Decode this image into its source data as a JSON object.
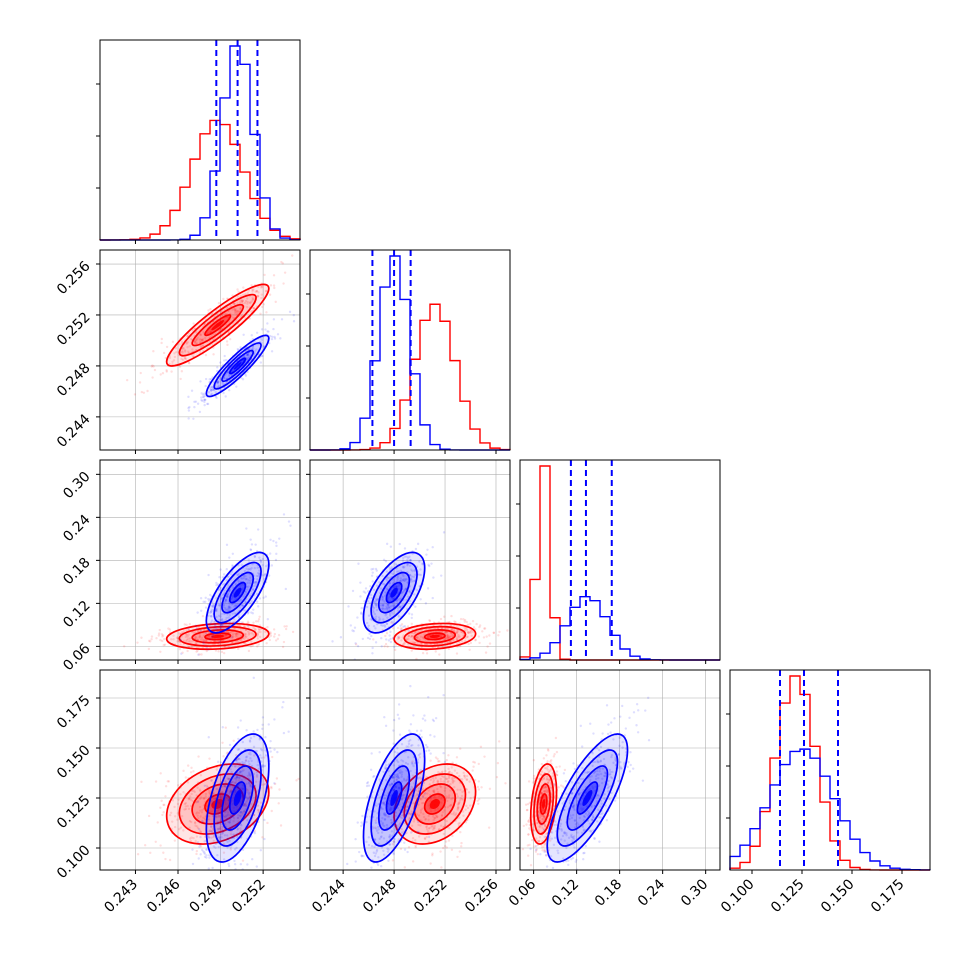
{
  "chart_data": {
    "type": "corner",
    "n_params": 4,
    "colors": {
      "series_red": "#ff0000",
      "series_blue": "#0000ff",
      "grid": "#b0b0b0",
      "frame": "#000000"
    },
    "series": [
      {
        "color_key": "series_red",
        "means": [
          0.2488,
          0.2512,
          0.074,
          0.122
        ],
        "sds": [
          0.0018,
          0.0016,
          0.009,
          0.01
        ],
        "corr": {
          "1,0": 0.9,
          "2,0": 0.2,
          "2,1": 0.2,
          "3,0": 0.3,
          "3,1": 0.3,
          "3,2": 0.3
        }
      },
      {
        "color_key": "series_blue",
        "means": [
          0.2502,
          0.248,
          0.135,
          0.125
        ],
        "sds": [
          0.0011,
          0.0012,
          0.028,
          0.016
        ],
        "corr": {
          "1,0": 0.9,
          "2,0": 0.7,
          "2,1": 0.6,
          "3,0": 0.5,
          "3,1": 0.6,
          "3,2": 0.75
        }
      }
    ],
    "quantiles": {
      "color_key": "series_blue",
      "values": [
        [
          0.2487,
          0.2502,
          0.2516
        ],
        [
          0.2463,
          0.248,
          0.2493
        ],
        [
          0.112,
          0.133,
          0.169
        ],
        [
          0.114,
          0.126,
          0.143
        ]
      ]
    },
    "ranges": [
      [
        0.2405,
        0.2546
      ],
      [
        0.2414,
        0.2571
      ],
      [
        0.041,
        0.32
      ],
      [
        0.089,
        0.189
      ]
    ],
    "ticks": [
      {
        "values": [
          0.243,
          0.246,
          0.249,
          0.252
        ],
        "labels": [
          "0.243",
          "0.246",
          "0.249",
          "0.252"
        ]
      },
      {
        "values": [
          0.244,
          0.248,
          0.252,
          0.256
        ],
        "labels": [
          "0.244",
          "0.248",
          "0.252",
          "0.256"
        ]
      },
      {
        "values": [
          0.06,
          0.12,
          0.18,
          0.24,
          0.3
        ],
        "labels": [
          "0.06",
          "0.12",
          "0.18",
          "0.24",
          "0.30"
        ]
      },
      {
        "values": [
          0.1,
          0.125,
          0.15,
          0.175
        ],
        "labels": [
          "0.100",
          "0.125",
          "0.150",
          "0.175"
        ]
      }
    ],
    "grid": true
  }
}
